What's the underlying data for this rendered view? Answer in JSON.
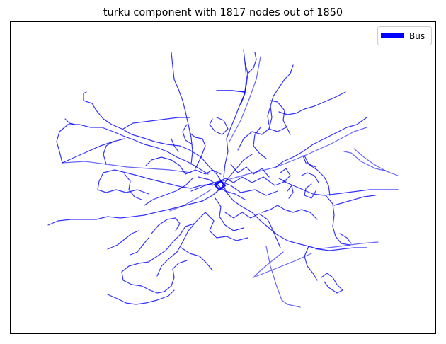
{
  "chart_data": {
    "type": "network",
    "title": "turku component with 1817 nodes out of 1850",
    "legend": {
      "placement": "upper-right",
      "entries": [
        {
          "label": "Bus",
          "color": "#0000ff"
        }
      ]
    },
    "axes": {
      "ticks": false,
      "grid": false
    },
    "component_nodes": 1817,
    "total_nodes": 1850
  },
  "colors": {
    "edge": "#0000ff",
    "frame": "#000000",
    "background": "#ffffff"
  }
}
